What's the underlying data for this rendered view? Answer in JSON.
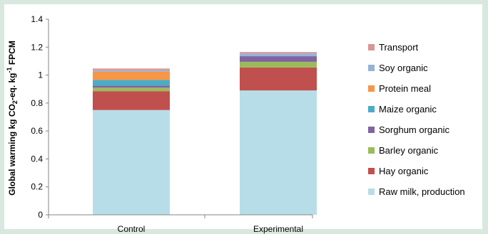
{
  "chart_data": {
    "type": "bar",
    "stacked": true,
    "categories": [
      "Control",
      "Experimental"
    ],
    "ylabel_parts": {
      "a": "Global warming kg CO",
      "sub": "2",
      "b": "-eq. kg",
      "sup": "-1",
      "c": " FPCM"
    },
    "ylim": [
      0,
      1.4
    ],
    "yticks": [
      "0",
      "0.2",
      "0.4",
      "0.6",
      "0.8",
      "1",
      "1.2",
      "1.4"
    ],
    "ytick_values": [
      0,
      0.2,
      0.4,
      0.6,
      0.8,
      1.0,
      1.2,
      1.4
    ],
    "grid": false,
    "legend_position": "right",
    "series": [
      {
        "name": "Raw milk, production",
        "color": "#b7dde8",
        "values": [
          0.75,
          0.89
        ]
      },
      {
        "name": "Hay organic",
        "color": "#c0504d",
        "values": [
          0.135,
          0.165
        ]
      },
      {
        "name": "Barley organic",
        "color": "#9bbb59",
        "values": [
          0.025,
          0.04
        ]
      },
      {
        "name": "Sorghum organic",
        "color": "#8064a2",
        "values": [
          0.015,
          0.04
        ]
      },
      {
        "name": "Maize organic",
        "color": "#4bacc6",
        "values": [
          0.04,
          0.0
        ]
      },
      {
        "name": "Protein meal",
        "color": "#f79646",
        "values": [
          0.06,
          0.0
        ]
      },
      {
        "name": "Soy organic",
        "color": "#95b3d7",
        "values": [
          0.01,
          0.02
        ]
      },
      {
        "name": "Transport",
        "color": "#d99694",
        "values": [
          0.012,
          0.01
        ]
      }
    ]
  }
}
